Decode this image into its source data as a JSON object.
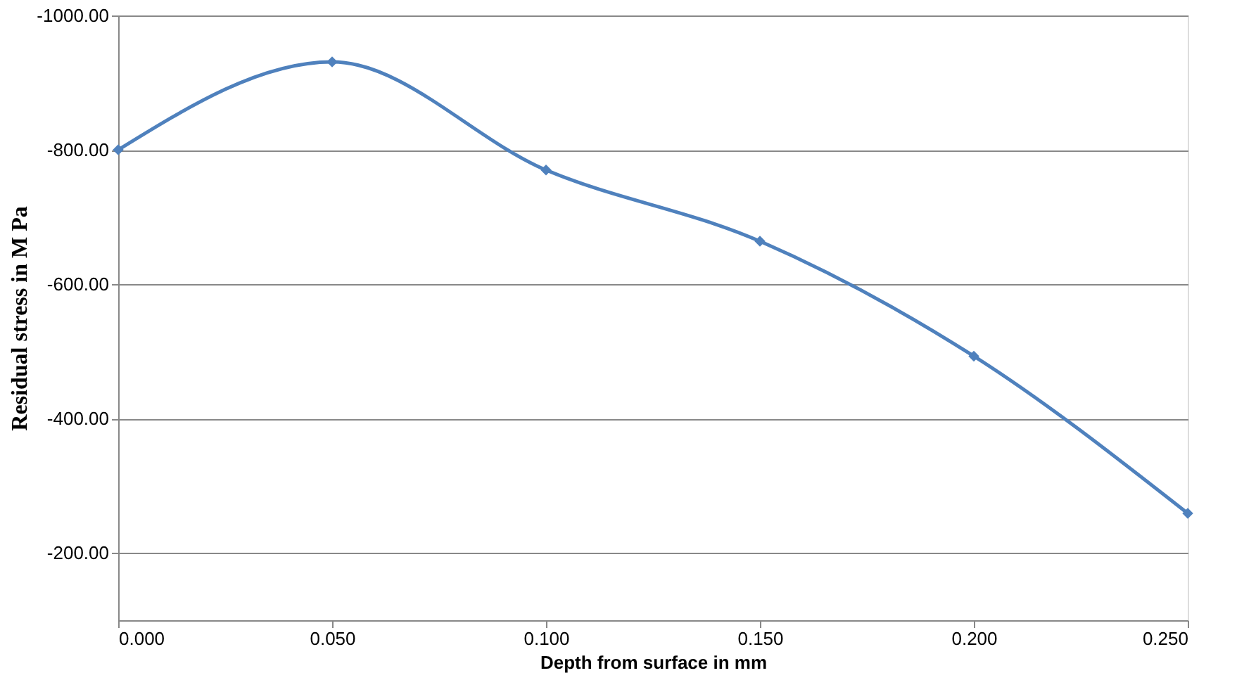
{
  "chart_data": {
    "type": "line",
    "xlabel": "Depth from surface in mm",
    "ylabel": "Residual stress in M Pa",
    "x": [
      0,
      0.05,
      0.1,
      0.15,
      0.2,
      0.25
    ],
    "series": [
      {
        "color": "#4f81bd",
        "values": [
          -800,
          -931,
          -770,
          -664,
          -493,
          -259
        ]
      }
    ],
    "xlim": [
      0,
      0.25
    ],
    "xticks": [
      {
        "value": 0,
        "label": "0.000"
      },
      {
        "value": 0.05,
        "label": "0.050"
      },
      {
        "value": 0.1,
        "label": "0.100"
      },
      {
        "value": 0.15,
        "label": "0.150"
      },
      {
        "value": 0.2,
        "label": "0.200"
      },
      {
        "value": 0.25,
        "label": "0.250"
      }
    ],
    "ylim": [
      -100,
      -1000
    ],
    "yticks": [
      {
        "value": -1000,
        "label": "-1000.00"
      },
      {
        "value": -800,
        "label": "-800.00"
      },
      {
        "value": -600,
        "label": "-600.00"
      },
      {
        "value": -400,
        "label": "-400.00"
      },
      {
        "value": -200,
        "label": "-200.00"
      }
    ],
    "grid": "y",
    "marker": "diamond",
    "line_style": "solid"
  }
}
